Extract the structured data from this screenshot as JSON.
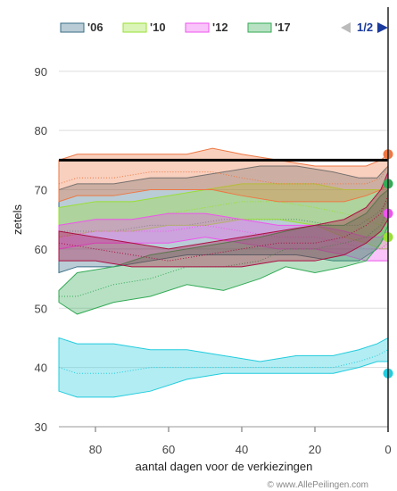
{
  "chart_data": {
    "type": "area",
    "xlabel": "aantal dagen voor de verkiezingen",
    "ylabel": "zetels",
    "xlim": [
      90,
      0
    ],
    "ylim": [
      30,
      96
    ],
    "x_ticks": [
      80,
      60,
      40,
      20,
      0
    ],
    "y_ticks": [
      30,
      40,
      50,
      60,
      70,
      80,
      90
    ],
    "grid": "horizontal",
    "legend_position": "top",
    "reference_line": 75,
    "pager": "1/2",
    "credit": "© www.AllePeilingen.com",
    "series": [
      {
        "name": "'06",
        "color": "#3a6e86",
        "x": [
          90,
          85,
          75,
          65,
          55,
          45,
          35,
          25,
          15,
          8,
          3,
          0
        ],
        "low": [
          56,
          57,
          57,
          58,
          59,
          59,
          59,
          59,
          58,
          58,
          60,
          63
        ],
        "high": [
          70,
          71,
          71,
          72,
          72,
          73,
          74,
          74,
          73,
          72,
          72,
          74
        ],
        "mid": [
          63,
          63,
          63,
          64,
          64,
          65,
          65,
          65,
          64,
          64,
          66,
          68
        ],
        "result": null
      },
      {
        "name": "'10",
        "color": "#99e033",
        "x": [
          90,
          80,
          70,
          60,
          50,
          40,
          30,
          20,
          12,
          6,
          2,
          0
        ],
        "low": [
          62,
          63,
          63,
          64,
          64,
          65,
          65,
          64,
          62,
          61,
          60,
          60
        ],
        "high": [
          67,
          68,
          68,
          69,
          70,
          71,
          71,
          71,
          70,
          70,
          70,
          71
        ],
        "mid": [
          64,
          65,
          65,
          66,
          67,
          68,
          68,
          67,
          66,
          65,
          64,
          65
        ],
        "result": 62
      },
      {
        "name": "'12",
        "color": "#ee55ee",
        "x": [
          90,
          80,
          70,
          60,
          50,
          40,
          30,
          20,
          12,
          6,
          2,
          0
        ],
        "low": [
          60,
          61,
          61,
          61,
          62,
          61,
          60,
          60,
          59,
          58,
          58,
          58
        ],
        "high": [
          64,
          65,
          65,
          66,
          66,
          65,
          64,
          64,
          63,
          62,
          62,
          63
        ],
        "mid": [
          62,
          63,
          63,
          63,
          64,
          63,
          62,
          62,
          61,
          60,
          60,
          61
        ],
        "result": 66
      },
      {
        "name": "'17",
        "color": "#33aa55",
        "x": [
          90,
          85,
          75,
          65,
          55,
          45,
          35,
          28,
          20,
          12,
          6,
          2,
          0
        ],
        "low": [
          51,
          49,
          51,
          52,
          54,
          53,
          55,
          57,
          56,
          57,
          58,
          61,
          64
        ],
        "high": [
          53,
          56,
          57,
          59,
          60,
          61,
          62,
          63,
          64,
          64,
          66,
          69,
          70
        ],
        "mid": [
          52,
          52,
          54,
          55,
          57,
          57,
          58,
          60,
          60,
          61,
          62,
          64,
          67
        ],
        "result": 71
      },
      {
        "name": "",
        "color": "#ee7744",
        "x": [
          90,
          85,
          75,
          65,
          55,
          48,
          40,
          30,
          20,
          12,
          6,
          2,
          0
        ],
        "low": [
          68,
          69,
          69,
          70,
          70,
          70,
          69,
          68,
          68,
          68,
          69,
          70,
          71
        ],
        "high": [
          75,
          76,
          76,
          76,
          76,
          77,
          76,
          75,
          74,
          74,
          74,
          75,
          76
        ],
        "mid": [
          71,
          72,
          72,
          73,
          73,
          73,
          72,
          71,
          71,
          71,
          71,
          72,
          74
        ],
        "result": 76
      },
      {
        "name": "",
        "color": "#22ccdd",
        "x": [
          90,
          85,
          75,
          65,
          55,
          45,
          35,
          25,
          15,
          8,
          3,
          0
        ],
        "low": [
          36,
          35,
          35,
          36,
          38,
          39,
          39,
          39,
          39,
          40,
          41,
          41
        ],
        "high": [
          45,
          44,
          44,
          43,
          43,
          42,
          41,
          42,
          42,
          43,
          44,
          45
        ],
        "mid": [
          40,
          39,
          39,
          40,
          40,
          40,
          40,
          40,
          40,
          41,
          42,
          43
        ],
        "result": 39
      },
      {
        "name": "",
        "color": "#aa1144",
        "x": [
          90,
          80,
          70,
          60,
          50,
          40,
          30,
          20,
          12,
          6,
          2,
          0
        ],
        "low": [
          58,
          58,
          57,
          57,
          57,
          57,
          58,
          58,
          59,
          61,
          63,
          65
        ],
        "high": [
          63,
          62,
          61,
          60,
          61,
          62,
          63,
          64,
          65,
          67,
          70,
          73
        ],
        "mid": [
          61,
          60,
          59,
          58,
          59,
          60,
          61,
          61,
          62,
          64,
          66,
          69
        ],
        "result": null
      }
    ]
  }
}
